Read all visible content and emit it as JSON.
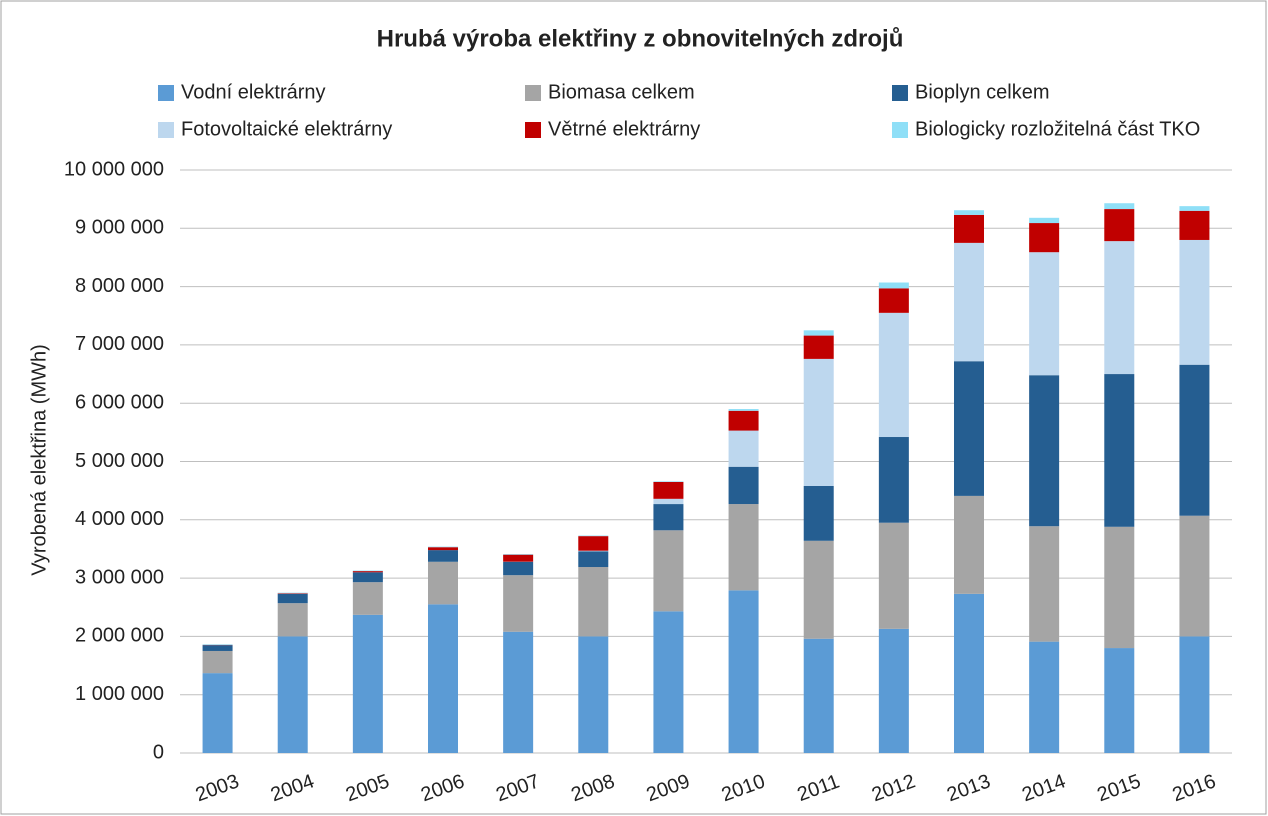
{
  "chart_data": {
    "type": "stacked_bar",
    "title": "Hrubá výroba elektřiny z obnovitelných zdrojů",
    "y_label": "Vyrobená elektřina (MWh)",
    "categories": [
      "2003",
      "2004",
      "2005",
      "2006",
      "2007",
      "2008",
      "2009",
      "2010",
      "2011",
      "2012",
      "2013",
      "2014",
      "2015",
      "2016"
    ],
    "series": [
      {
        "name": "Vodní elektrárny",
        "color": "#5b9bd5",
        "values": [
          1370000,
          2000000,
          2370000,
          2550000,
          2080000,
          2000000,
          2430000,
          2790000,
          1960000,
          2130000,
          2730000,
          1910000,
          1800000,
          2000000
        ]
      },
      {
        "name": "Biomasa celkem",
        "color": "#a5a5a5",
        "values": [
          380000,
          570000,
          560000,
          730000,
          970000,
          1190000,
          1390000,
          1480000,
          1680000,
          1820000,
          1680000,
          1980000,
          2080000,
          2070000
        ]
      },
      {
        "name": "Bioplyn celkem",
        "color": "#255e91",
        "values": [
          100000,
          160000,
          170000,
          200000,
          230000,
          270000,
          450000,
          640000,
          940000,
          1470000,
          2310000,
          2590000,
          2620000,
          2590000
        ]
      },
      {
        "name": "Fotovoltaické elektrárny",
        "color": "#bdd7ee",
        "values": [
          0,
          0,
          0,
          0,
          2000,
          10000,
          90000,
          620000,
          2180000,
          2130000,
          2030000,
          2110000,
          2280000,
          2140000
        ]
      },
      {
        "name": "Větrné elektrárny",
        "color": "#c00000",
        "values": [
          5000,
          10000,
          20000,
          50000,
          120000,
          250000,
          290000,
          340000,
          400000,
          420000,
          480000,
          500000,
          550000,
          500000
        ]
      },
      {
        "name": "Biologicky rozložitelná část TKO",
        "color": "#8fdff7",
        "values": [
          10000,
          10000,
          10000,
          10000,
          10000,
          10000,
          10000,
          30000,
          90000,
          100000,
          80000,
          90000,
          100000,
          80000
        ]
      }
    ],
    "ylim": [
      0,
      10000000
    ],
    "yticks": [
      0,
      {
        "value": 1000000,
        "label": "1 000 000"
      },
      {
        "value": 2000000,
        "label": "2 000 000"
      },
      {
        "value": 3000000,
        "label": "3 000 000"
      },
      {
        "value": 4000000,
        "label": "4 000 000"
      },
      {
        "value": 5000000,
        "label": "5 000 000"
      },
      {
        "value": 6000000,
        "label": "6 000 000"
      },
      {
        "value": 7000000,
        "label": "7 000 000"
      },
      {
        "value": 8000000,
        "label": "8 000 000"
      },
      {
        "value": 9000000,
        "label": "9 000 000"
      },
      {
        "value": 10000000,
        "label": "10 000 000"
      }
    ],
    "grid": true
  }
}
